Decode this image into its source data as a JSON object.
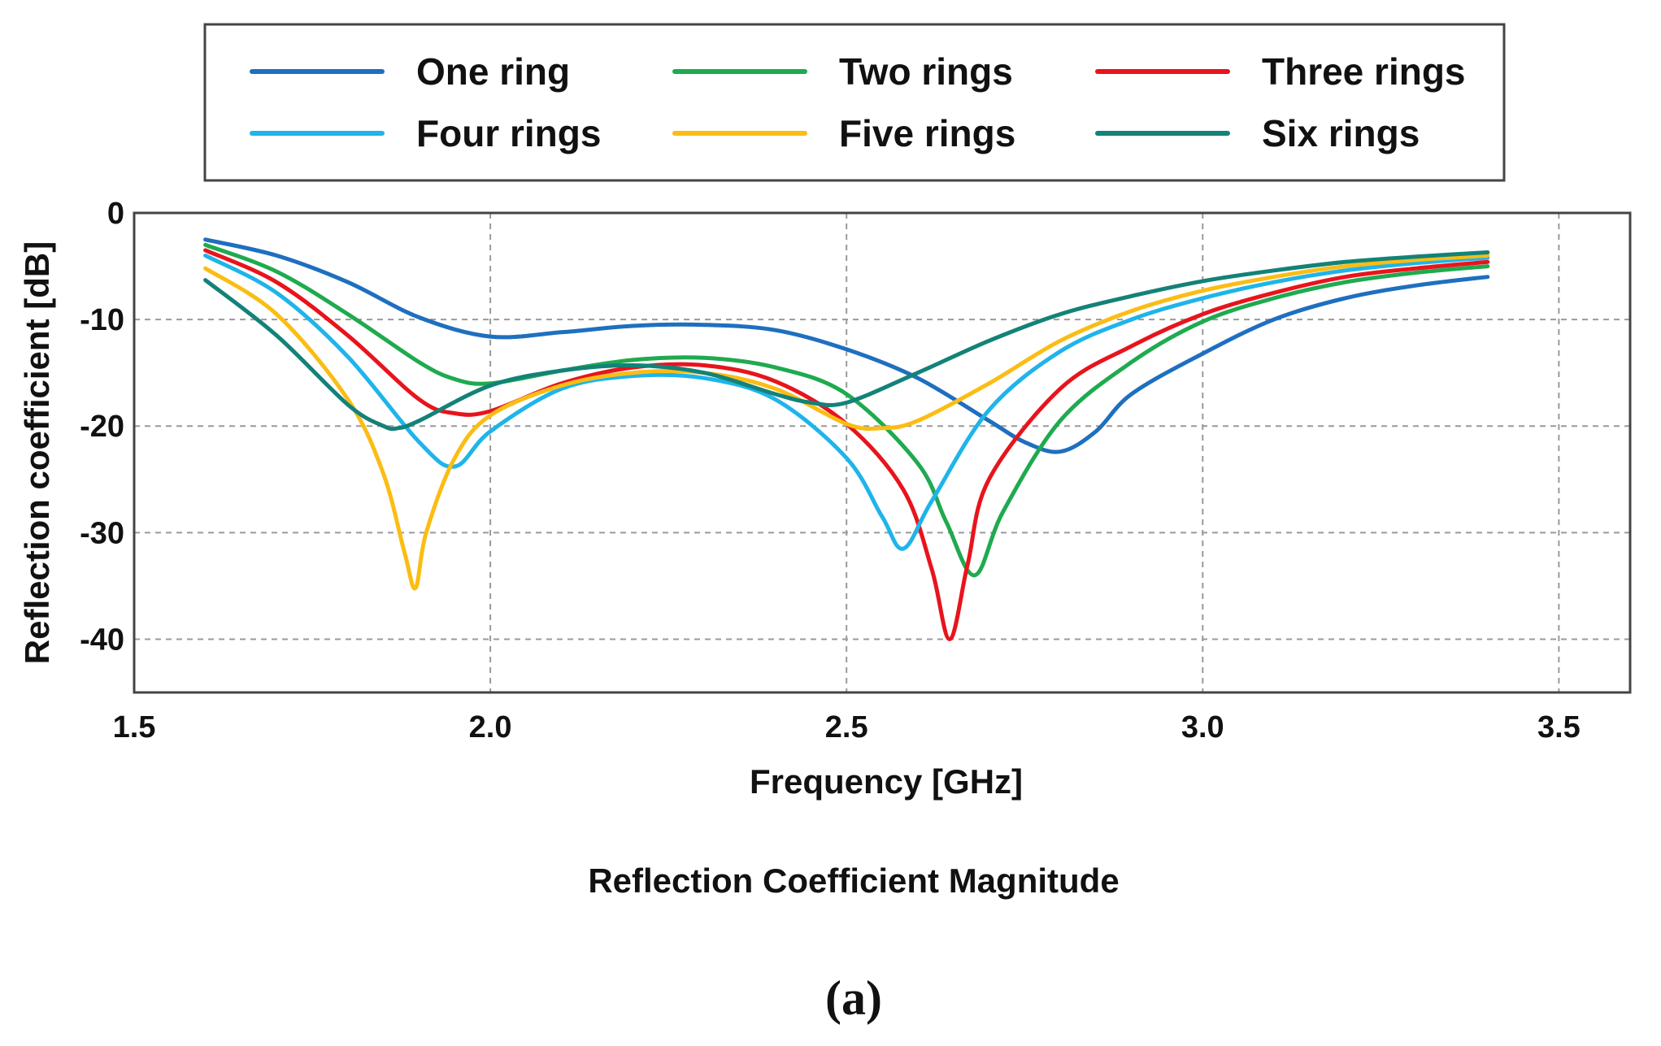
{
  "chart_data": {
    "type": "line",
    "title": "",
    "caption": "Reflection Coefficient Magnitude",
    "panel_label": "(a)",
    "xlabel": "Frequency [GHz]",
    "ylabel": "Reflection coefficient [dB]",
    "xlim": [
      1.5,
      3.6
    ],
    "ylim": [
      -45,
      0
    ],
    "xticks": [
      1.5,
      2.0,
      2.5,
      3.0,
      3.5
    ],
    "xtick_labels": [
      "1.5",
      "2.0",
      "2.5",
      "3.0",
      "3.5"
    ],
    "yticks": [
      0,
      -10,
      -20,
      -30,
      -40
    ],
    "ytick_labels": [
      "0",
      "-10",
      "-20",
      "-30",
      "-40"
    ],
    "grid": true,
    "legend_position": "top",
    "series": [
      {
        "name": "One ring",
        "color": "#1f6fc0",
        "x": [
          1.6,
          1.7,
          1.8,
          1.9,
          2.0,
          2.1,
          2.2,
          2.3,
          2.4,
          2.5,
          2.6,
          2.7,
          2.75,
          2.8,
          2.85,
          2.9,
          3.0,
          3.1,
          3.2,
          3.3,
          3.4
        ],
        "y": [
          -2.5,
          -4.0,
          -6.5,
          -9.8,
          -11.6,
          -11.2,
          -10.6,
          -10.5,
          -11.0,
          -12.8,
          -15.5,
          -19.5,
          -21.5,
          -22.4,
          -20.5,
          -17.0,
          -13.2,
          -10.0,
          -8.0,
          -6.8,
          -6.0
        ]
      },
      {
        "name": "Two rings",
        "color": "#1faa4f",
        "x": [
          1.6,
          1.7,
          1.8,
          1.9,
          1.95,
          2.0,
          2.1,
          2.2,
          2.3,
          2.4,
          2.5,
          2.6,
          2.64,
          2.68,
          2.72,
          2.8,
          2.9,
          3.0,
          3.1,
          3.2,
          3.3,
          3.4
        ],
        "y": [
          -3.0,
          -5.5,
          -9.5,
          -14.0,
          -15.6,
          -16.0,
          -14.8,
          -13.8,
          -13.6,
          -14.5,
          -17.0,
          -23.5,
          -29.0,
          -34.0,
          -28.0,
          -19.5,
          -14.0,
          -10.2,
          -8.0,
          -6.5,
          -5.6,
          -5.0
        ]
      },
      {
        "name": "Three rings",
        "color": "#e8141c",
        "x": [
          1.6,
          1.7,
          1.8,
          1.9,
          1.95,
          2.0,
          2.1,
          2.2,
          2.3,
          2.4,
          2.5,
          2.58,
          2.62,
          2.645,
          2.67,
          2.7,
          2.8,
          2.9,
          3.0,
          3.1,
          3.2,
          3.3,
          3.4
        ],
        "y": [
          -3.5,
          -6.5,
          -11.5,
          -17.5,
          -18.8,
          -18.6,
          -16.0,
          -14.5,
          -14.3,
          -15.8,
          -19.8,
          -26.0,
          -33.5,
          -40.0,
          -33.0,
          -25.0,
          -16.5,
          -12.5,
          -9.5,
          -7.5,
          -6.0,
          -5.2,
          -4.6
        ]
      },
      {
        "name": "Four rings",
        "color": "#1fb4ea",
        "x": [
          1.6,
          1.7,
          1.8,
          1.9,
          1.95,
          2.0,
          2.1,
          2.2,
          2.3,
          2.4,
          2.5,
          2.55,
          2.58,
          2.62,
          2.7,
          2.8,
          2.9,
          3.0,
          3.1,
          3.2,
          3.3,
          3.4
        ],
        "y": [
          -4.0,
          -7.5,
          -13.5,
          -21.5,
          -23.8,
          -20.5,
          -16.5,
          -15.3,
          -15.5,
          -17.5,
          -23.0,
          -28.5,
          -31.5,
          -27.0,
          -18.5,
          -13.0,
          -10.0,
          -8.0,
          -6.5,
          -5.4,
          -4.7,
          -4.2
        ]
      },
      {
        "name": "Five rings",
        "color": "#fbbd14",
        "x": [
          1.6,
          1.7,
          1.8,
          1.85,
          1.88,
          1.895,
          1.91,
          1.95,
          2.0,
          2.1,
          2.2,
          2.3,
          2.4,
          2.5,
          2.55,
          2.6,
          2.7,
          2.8,
          2.9,
          3.0,
          3.1,
          3.2,
          3.3,
          3.4
        ],
        "y": [
          -5.2,
          -9.5,
          -17.5,
          -24.5,
          -32.0,
          -35.2,
          -30.0,
          -23.0,
          -19.0,
          -16.2,
          -15.0,
          -15.0,
          -16.5,
          -19.8,
          -20.2,
          -19.5,
          -16.0,
          -12.0,
          -9.2,
          -7.3,
          -6.0,
          -5.0,
          -4.4,
          -4.0
        ]
      },
      {
        "name": "Six rings",
        "color": "#138278",
        "x": [
          1.6,
          1.7,
          1.8,
          1.85,
          1.87,
          1.9,
          2.0,
          2.1,
          2.2,
          2.3,
          2.4,
          2.45,
          2.5,
          2.6,
          2.7,
          2.8,
          2.9,
          3.0,
          3.1,
          3.2,
          3.3,
          3.4
        ],
        "y": [
          -6.3,
          -11.5,
          -18.0,
          -20.0,
          -20.2,
          -19.5,
          -16.2,
          -14.8,
          -14.3,
          -15.0,
          -17.0,
          -17.8,
          -17.8,
          -15.0,
          -12.0,
          -9.5,
          -7.8,
          -6.4,
          -5.4,
          -4.6,
          -4.1,
          -3.7
        ]
      }
    ]
  }
}
